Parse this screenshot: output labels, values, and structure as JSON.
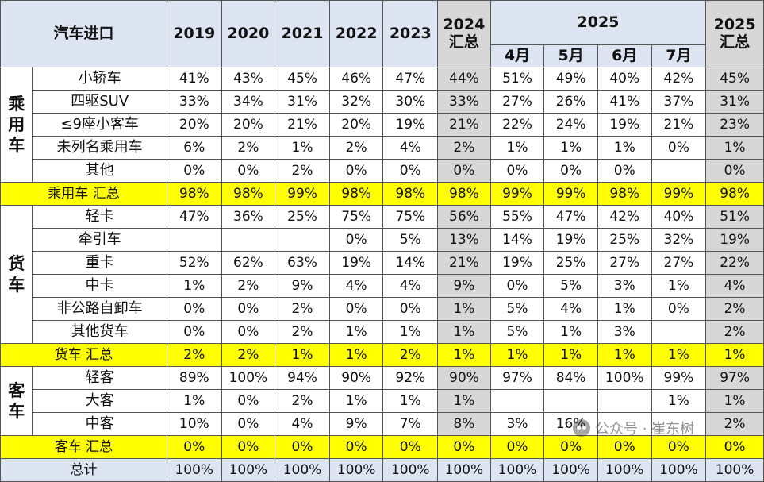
{
  "header": {
    "corner": "汽车进口",
    "years": [
      "2019",
      "2020",
      "2021",
      "2022",
      "2023"
    ],
    "y2024": "2024",
    "summary_label": "汇总",
    "y2025": "2025",
    "months": [
      "4月",
      "5月",
      "6月",
      "7月"
    ]
  },
  "groups": {
    "passenger": {
      "label": "乘用车",
      "rows": [
        {
          "name": "小轿车",
          "v": [
            "41%",
            "43%",
            "45%",
            "46%",
            "47%",
            "44%",
            "51%",
            "49%",
            "40%",
            "42%",
            "45%"
          ]
        },
        {
          "name": "四驱SUV",
          "v": [
            "33%",
            "34%",
            "31%",
            "32%",
            "30%",
            "33%",
            "27%",
            "26%",
            "41%",
            "37%",
            "31%"
          ]
        },
        {
          "name": "≤9座小客车",
          "v": [
            "20%",
            "20%",
            "21%",
            "20%",
            "19%",
            "21%",
            "22%",
            "24%",
            "19%",
            "21%",
            "23%"
          ]
        },
        {
          "name": "未列名乘用车",
          "v": [
            "6%",
            "2%",
            "1%",
            "2%",
            "4%",
            "2%",
            "1%",
            "1%",
            "1%",
            "0%",
            "1%"
          ]
        },
        {
          "name": "其他",
          "v": [
            "0%",
            "0%",
            "2%",
            "0%",
            "0%",
            "0%",
            "0%",
            "0%",
            "0%",
            "",
            "0%"
          ]
        }
      ],
      "summary": {
        "name": "乘用车 汇总",
        "v": [
          "98%",
          "98%",
          "99%",
          "98%",
          "98%",
          "98%",
          "99%",
          "99%",
          "98%",
          "99%",
          "98%"
        ]
      }
    },
    "truck": {
      "label": "货车",
      "rows": [
        {
          "name": "轻卡",
          "v": [
            "47%",
            "36%",
            "25%",
            "75%",
            "75%",
            "56%",
            "55%",
            "47%",
            "42%",
            "40%",
            "51%"
          ]
        },
        {
          "name": "牵引车",
          "v": [
            "",
            "",
            "",
            "0%",
            "5%",
            "13%",
            "14%",
            "19%",
            "25%",
            "32%",
            "19%"
          ]
        },
        {
          "name": "重卡",
          "v": [
            "52%",
            "62%",
            "63%",
            "19%",
            "14%",
            "21%",
            "19%",
            "25%",
            "27%",
            "27%",
            "22%"
          ]
        },
        {
          "name": "中卡",
          "v": [
            "1%",
            "2%",
            "9%",
            "4%",
            "4%",
            "9%",
            "0%",
            "5%",
            "3%",
            "1%",
            "4%"
          ]
        },
        {
          "name": "非公路自卸车",
          "v": [
            "0%",
            "0%",
            "2%",
            "0%",
            "0%",
            "1%",
            "5%",
            "4%",
            "1%",
            "0%",
            "2%"
          ]
        },
        {
          "name": "其他货车",
          "v": [
            "0%",
            "0%",
            "2%",
            "1%",
            "1%",
            "1%",
            "5%",
            "1%",
            "3%",
            "",
            "2%"
          ]
        }
      ],
      "summary": {
        "name": "货车 汇总",
        "v": [
          "2%",
          "2%",
          "1%",
          "1%",
          "2%",
          "1%",
          "1%",
          "1%",
          "1%",
          "1%",
          "1%"
        ]
      }
    },
    "bus": {
      "label": "客车",
      "rows": [
        {
          "name": "轻客",
          "v": [
            "89%",
            "100%",
            "94%",
            "90%",
            "92%",
            "90%",
            "97%",
            "84%",
            "100%",
            "99%",
            "97%"
          ]
        },
        {
          "name": "大客",
          "v": [
            "1%",
            "0%",
            "2%",
            "1%",
            "1%",
            "1%",
            "",
            "",
            "",
            "1%",
            "1%"
          ]
        },
        {
          "name": "中客",
          "v": [
            "10%",
            "0%",
            "4%",
            "9%",
            "7%",
            "8%",
            "3%",
            "16%",
            "",
            "",
            "2%"
          ]
        }
      ],
      "summary": {
        "name": "客车 汇总",
        "v": [
          "0%",
          "0%",
          "0%",
          "0%",
          "0%",
          "0%",
          "0%",
          "0%",
          "0%",
          "0%",
          "0%"
        ]
      }
    }
  },
  "total": {
    "name": "总计",
    "v": [
      "100%",
      "100%",
      "100%",
      "100%",
      "100%",
      "100%",
      "100%",
      "100%",
      "100%",
      "100%",
      "100%"
    ]
  },
  "watermark": {
    "text": "公众号 · 崔东树",
    "icon": "wechat-icon"
  },
  "colors": {
    "header_bg": "#dde5f3",
    "summary_bg": "#ffff00",
    "highlight_col": "#d7d7d7"
  }
}
